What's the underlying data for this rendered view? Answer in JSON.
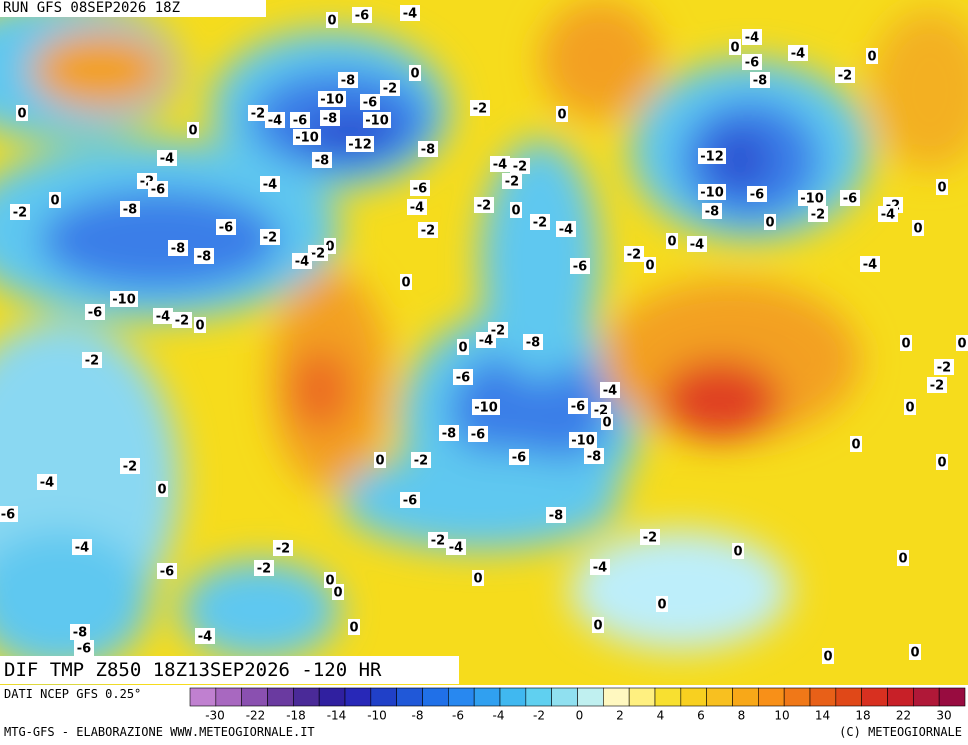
{
  "header": {
    "run": "RUN GFS 08SEP2026 18Z",
    "field": "DIF TMP Z850 18Z13SEP2026 -120 HR"
  },
  "footer": {
    "source": "DATI NCEP GFS 0.25°",
    "credit": "MTG-GFS - ELABORAZIONE WWW.METEOGIORNALE.IT",
    "copyright": "(C) METEOGIORNALE"
  },
  "colorbar": {
    "colors": [
      "#c080d0",
      "#a868c0",
      "#8a50b0",
      "#6a3aa0",
      "#4a2a98",
      "#3020a0",
      "#2828b8",
      "#2040c8",
      "#2058d8",
      "#2070e8",
      "#2888f0",
      "#30a0f0",
      "#40b8f0",
      "#60d0f0",
      "#90e0f0",
      "#c0f0f0",
      "#fff8c0",
      "#fff080",
      "#f8e030",
      "#f8d020",
      "#f8c020",
      "#f8a818",
      "#f89018",
      "#f07818",
      "#e86018",
      "#e04818",
      "#d83020",
      "#c82028",
      "#b01838",
      "#980c40"
    ],
    "ticks": [
      -30,
      -22,
      -18,
      -14,
      -10,
      -8,
      -6,
      -4,
      -2,
      0,
      2,
      4,
      6,
      8,
      10,
      14,
      18,
      22,
      30
    ]
  },
  "contour_labels": [
    0,
    -6,
    -4,
    -4,
    0,
    -6,
    -4,
    0,
    -8,
    -2,
    0,
    -8,
    -2,
    0,
    -10,
    -6,
    -2,
    -4,
    -6,
    -8,
    -10,
    -2,
    0,
    0,
    -10,
    -12,
    -8,
    -12,
    -4,
    -8,
    -4,
    -2,
    -2,
    -6,
    -4,
    -6,
    -2,
    -10,
    -6,
    -10,
    -6,
    -2,
    0,
    -2,
    0,
    -8,
    -4,
    -2,
    0,
    -8,
    -2,
    -4,
    -2,
    -6,
    -2,
    -4,
    0,
    0,
    -2,
    -8,
    -8,
    0,
    -2,
    -4,
    0,
    -4,
    -2,
    0,
    -6,
    -4,
    0,
    -10,
    -6,
    -4,
    -2,
    0,
    -2,
    -4,
    0,
    -8,
    0,
    0,
    -2,
    -2,
    -6,
    -4,
    -2,
    -6,
    -2,
    -10,
    0,
    0,
    -8,
    -6,
    -10,
    0,
    0,
    -2,
    -6,
    -8,
    -2,
    0,
    -4,
    0,
    -6,
    -6,
    -8,
    -2,
    -4,
    -2,
    -2,
    -4,
    0,
    0,
    -2,
    -6,
    0,
    0,
    -4,
    0,
    0,
    0,
    0,
    -8,
    -4,
    -6,
    0,
    0
  ]
}
